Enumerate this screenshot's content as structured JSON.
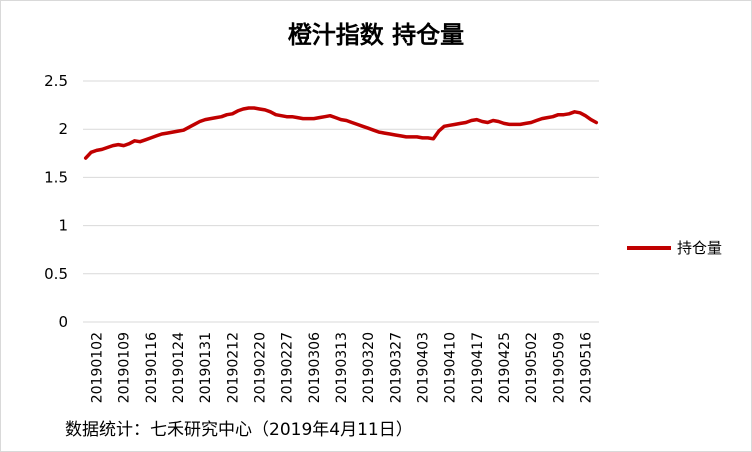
{
  "title": "橙汁指数 持仓量",
  "source_note": "数据统计：七禾研究中心（2019年4月11日）",
  "colors": {
    "series": "#c00000",
    "grid": "#d9d9d9",
    "axis_text": "#000000"
  },
  "chart_data": {
    "type": "line",
    "title": "橙汁指数 持仓量",
    "xlabel": "",
    "ylabel": "",
    "ylim": [
      0,
      2.5
    ],
    "yticks": [
      "0",
      "0.5",
      "1",
      "1.5",
      "2",
      "2.5"
    ],
    "grid": true,
    "legend_position": "right",
    "x_tick_labels": [
      "20190102",
      "20190109",
      "20190116",
      "20190124",
      "20190131",
      "20190212",
      "20190220",
      "20190227",
      "20190306",
      "20190313",
      "20190320",
      "20190327",
      "20190403",
      "20190410",
      "20190417",
      "20190425",
      "20190502",
      "20190509",
      "20190516"
    ],
    "series": [
      {
        "name": "持仓量",
        "values": [
          1.7,
          1.76,
          1.78,
          1.79,
          1.81,
          1.83,
          1.84,
          1.83,
          1.85,
          1.88,
          1.87,
          1.89,
          1.91,
          1.93,
          1.95,
          1.96,
          1.97,
          1.98,
          1.99,
          2.02,
          2.05,
          2.08,
          2.1,
          2.11,
          2.12,
          2.13,
          2.15,
          2.16,
          2.19,
          2.21,
          2.22,
          2.22,
          2.21,
          2.2,
          2.18,
          2.15,
          2.14,
          2.13,
          2.13,
          2.12,
          2.11,
          2.11,
          2.11,
          2.12,
          2.13,
          2.14,
          2.12,
          2.1,
          2.09,
          2.07,
          2.05,
          2.03,
          2.01,
          1.99,
          1.97,
          1.96,
          1.95,
          1.94,
          1.93,
          1.92,
          1.92,
          1.92,
          1.91,
          1.91,
          1.9,
          1.98,
          2.03,
          2.04,
          2.05,
          2.06,
          2.07,
          2.09,
          2.1,
          2.08,
          2.07,
          2.09,
          2.08,
          2.06,
          2.05,
          2.05,
          2.05,
          2.06,
          2.07,
          2.09,
          2.11,
          2.12,
          2.13,
          2.15,
          2.15,
          2.16,
          2.18,
          2.17,
          2.14,
          2.1,
          2.07
        ]
      }
    ]
  }
}
